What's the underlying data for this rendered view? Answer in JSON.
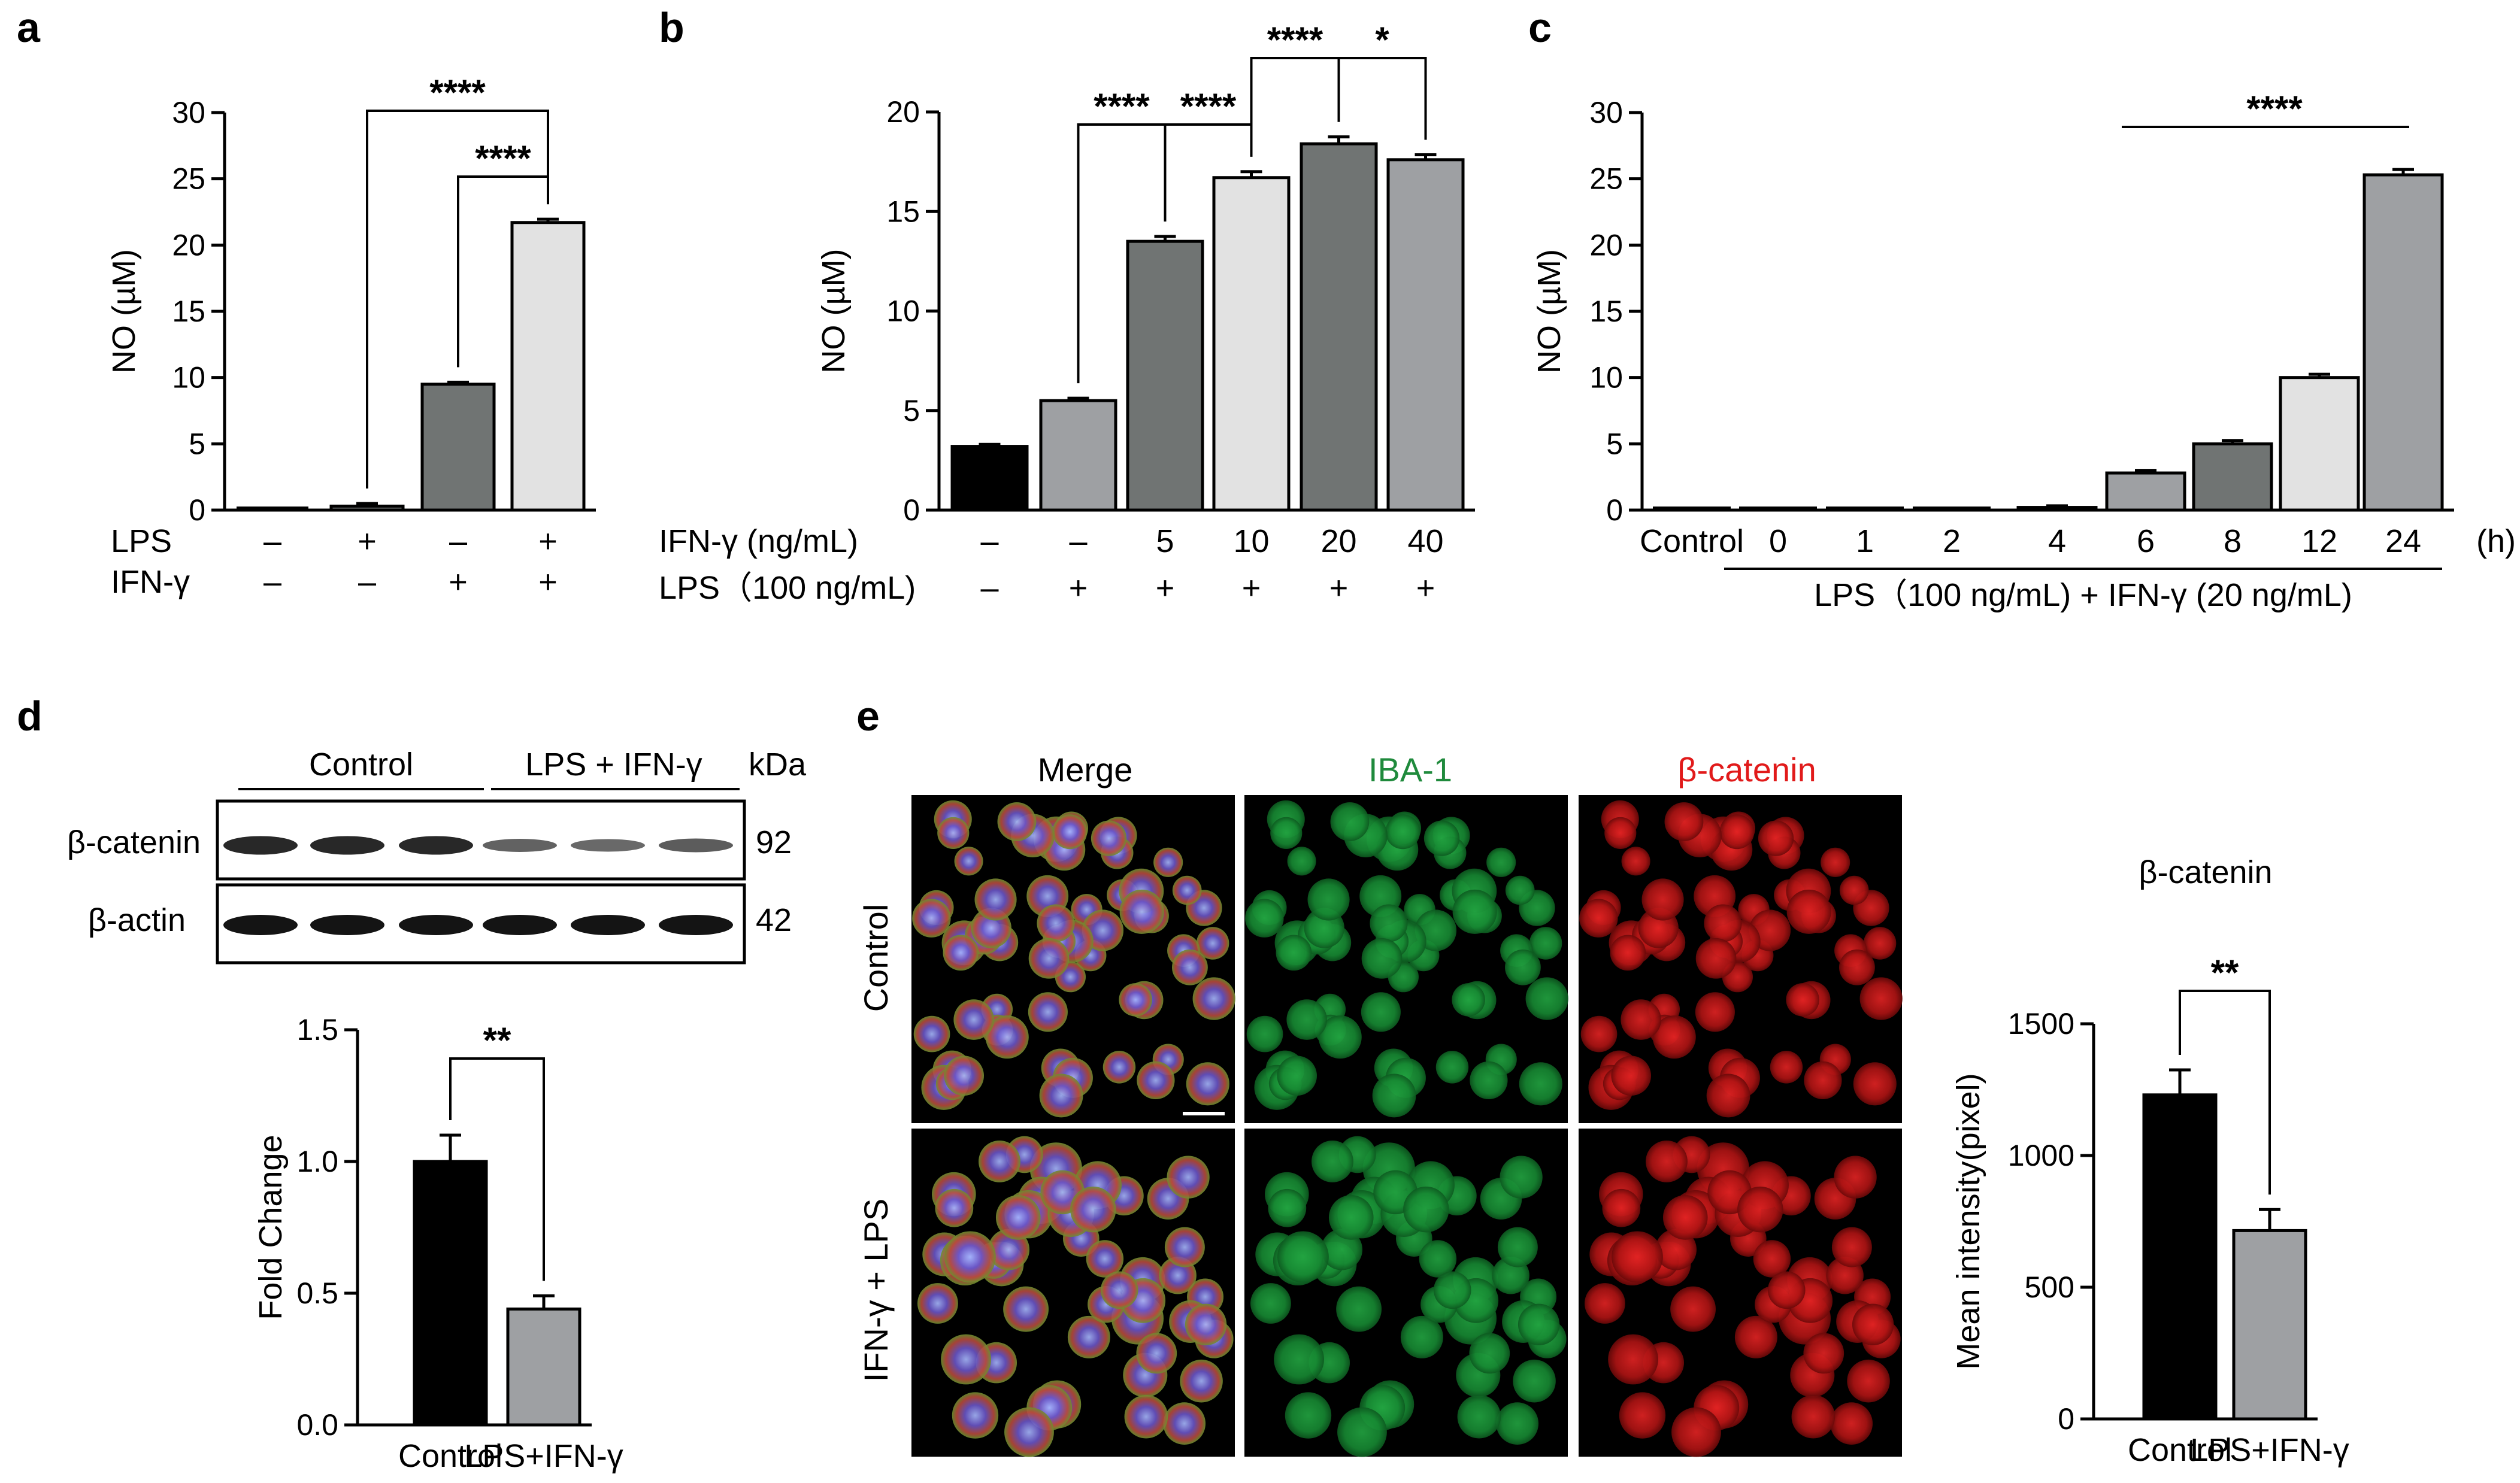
{
  "panels": {
    "a": "a",
    "b": "b",
    "c": "c",
    "d": "d",
    "e": "e"
  },
  "colors": {
    "black": "#000000",
    "dark_gray": "#707473",
    "mid_gray": "#9ea0a3",
    "light_gray": "#e2e2e2",
    "green": "#1f8a3c",
    "red": "#e11a1a"
  },
  "chart_data": [
    {
      "id": "a",
      "type": "bar",
      "title": "",
      "xlabel": "",
      "ylabel": "NO (µM)",
      "ylim": [
        0,
        30
      ],
      "yticks": [
        "0",
        "5",
        "10",
        "15",
        "20",
        "25",
        "30"
      ],
      "condition_rows": [
        {
          "label": "LPS",
          "values": [
            "–",
            "+",
            "–",
            "+"
          ]
        },
        {
          "label": "IFN-γ",
          "values": [
            "–",
            "–",
            "+",
            "+"
          ]
        }
      ],
      "values": [
        0,
        0.3,
        9.5,
        21.7
      ],
      "errors": [
        0,
        0.2,
        0.15,
        0.25
      ],
      "significance": [
        {
          "from": 1,
          "to": 3,
          "label": "****"
        },
        {
          "from": 2,
          "to": 3,
          "label": "****"
        }
      ]
    },
    {
      "id": "b",
      "type": "bar",
      "title": "",
      "xlabel": "",
      "ylabel": "NO (µM)",
      "ylim": [
        0,
        20
      ],
      "yticks": [
        "0",
        "5",
        "10",
        "15",
        "20"
      ],
      "condition_rows": [
        {
          "label": "IFN-γ (ng/mL)",
          "values": [
            "–",
            "–",
            "5",
            "10",
            "20",
            "40"
          ]
        },
        {
          "label": "LPS（100 ng/mL)",
          "values": [
            "–",
            "+",
            "+",
            "+",
            "+",
            "+"
          ]
        }
      ],
      "values": [
        3.2,
        5.5,
        13.5,
        16.7,
        18.4,
        17.6
      ],
      "errors": [
        0.1,
        0.12,
        0.25,
        0.3,
        0.35,
        0.25
      ],
      "significance": [
        {
          "from": 1,
          "to": 2,
          "label": "****"
        },
        {
          "from": 2,
          "to": 3,
          "label": "****"
        },
        {
          "from": 3,
          "to": 4,
          "label": "****"
        },
        {
          "from": 4,
          "to": 5,
          "label": "*"
        }
      ]
    },
    {
      "id": "c",
      "type": "bar",
      "title": "",
      "xlabel": "",
      "ylabel": "NO (µM)",
      "ylim": [
        0,
        30
      ],
      "yticks": [
        "0",
        "5",
        "10",
        "15",
        "20",
        "25",
        "30"
      ],
      "categories": [
        "Control",
        "0",
        "1",
        "2",
        "4",
        "6",
        "8",
        "12",
        "24"
      ],
      "unit_label": "(h)",
      "group_label": "LPS（100 ng/mL) + IFN-γ (20 ng/mL)",
      "values": [
        0,
        0,
        0,
        0,
        0.2,
        2.8,
        5.0,
        10.0,
        25.3
      ],
      "errors": [
        0,
        0,
        0,
        0,
        0.12,
        0.2,
        0.25,
        0.25,
        0.4
      ],
      "significance": [
        {
          "from": 5,
          "to": 8,
          "label": "****"
        }
      ]
    },
    {
      "id": "d-blot",
      "type": "western-blot",
      "group_labels": [
        "Control",
        "LPS + IFN-γ"
      ],
      "kda_label": "kDa",
      "bands": [
        {
          "protein": "β-catenin",
          "kda": "92",
          "intensities": [
            0.85,
            0.85,
            0.85,
            0.4,
            0.35,
            0.45
          ]
        },
        {
          "protein": "β-actin",
          "kda": "42",
          "intensities": [
            1,
            1,
            1,
            1,
            1,
            1
          ]
        }
      ]
    },
    {
      "id": "d",
      "type": "bar",
      "title": "",
      "xlabel": "",
      "ylabel": "Fold Change",
      "ylim": [
        0,
        1.5
      ],
      "yticks": [
        "0.0",
        "0.5",
        "1.0",
        "1.5"
      ],
      "categories": [
        "Control",
        "LPS+IFN-γ"
      ],
      "values": [
        1.0,
        0.44
      ],
      "errors": [
        0.1,
        0.05
      ],
      "significance": [
        {
          "from": 0,
          "to": 1,
          "label": "**"
        }
      ]
    },
    {
      "id": "e",
      "type": "bar",
      "title": "β-catenin",
      "xlabel": "",
      "ylabel": "Mean intensity(pixel)",
      "ylim": [
        0,
        1500
      ],
      "yticks": [
        "0",
        "500",
        "1000",
        "1500"
      ],
      "categories": [
        "Control",
        "LPS+IFN-γ"
      ],
      "values": [
        1230,
        715
      ],
      "errors": [
        95,
        80
      ],
      "significance": [
        {
          "from": 0,
          "to": 1,
          "label": "**"
        }
      ]
    }
  ],
  "micrographs": {
    "column_headers": [
      "Merge",
      "IBA-1",
      "β-catenin"
    ],
    "row_labels": [
      "Control",
      "IFN-γ + LPS"
    ]
  }
}
